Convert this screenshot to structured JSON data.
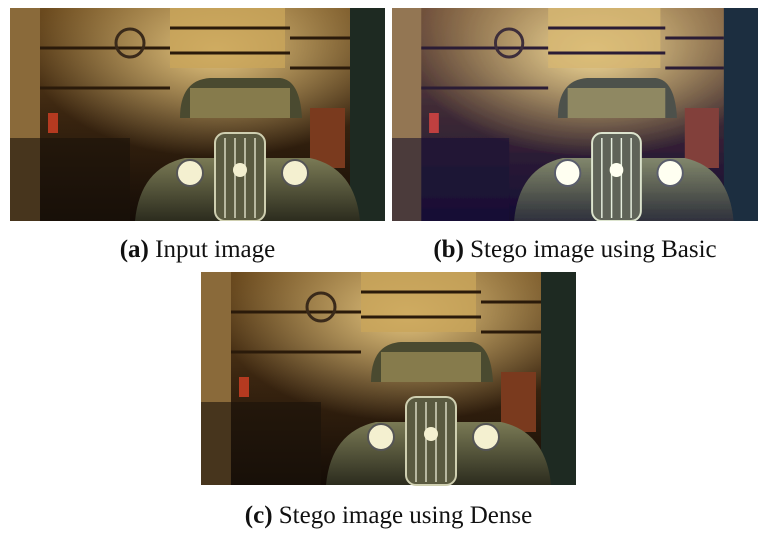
{
  "figure": {
    "subfigures": [
      {
        "label": "(a)",
        "caption": "Input image"
      },
      {
        "label": "(b)",
        "caption": "Stego image using Basic"
      },
      {
        "label": "(c)",
        "caption": "Stego image using Dense"
      }
    ]
  }
}
